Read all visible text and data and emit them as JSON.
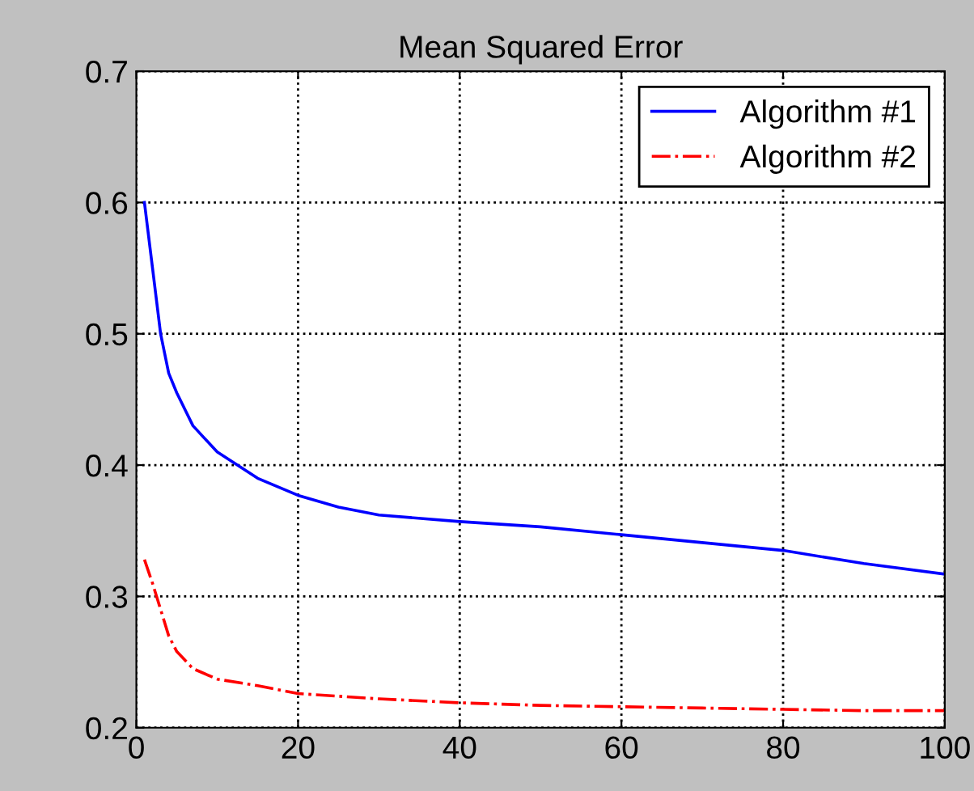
{
  "chart_data": {
    "type": "line",
    "title": "Mean Squared Error",
    "xlim": [
      0,
      100
    ],
    "ylim": [
      0.2,
      0.7
    ],
    "xticks": [
      0,
      20,
      40,
      60,
      80,
      100
    ],
    "yticks": [
      0.2,
      0.3,
      0.4,
      0.5,
      0.6,
      0.7
    ],
    "grid": true,
    "legend": "top right",
    "marker": "none",
    "x": [
      1,
      2,
      3,
      4,
      5,
      7,
      10,
      15,
      20,
      25,
      30,
      40,
      50,
      60,
      70,
      80,
      90,
      100
    ],
    "series": [
      {
        "name": "Algorithm #1",
        "color": "#0000ff",
        "line_style": "solid",
        "values": [
          0.6,
          0.55,
          0.5,
          0.47,
          0.455,
          0.43,
          0.41,
          0.39,
          0.377,
          0.368,
          0.362,
          0.357,
          0.353,
          0.347,
          0.341,
          0.335,
          0.325,
          0.317
        ]
      },
      {
        "name": "Algorithm #2",
        "color": "#ff0000",
        "line_style": "dashdot",
        "values": [
          0.328,
          0.31,
          0.29,
          0.27,
          0.258,
          0.245,
          0.237,
          0.232,
          0.226,
          0.224,
          0.222,
          0.219,
          0.217,
          0.216,
          0.215,
          0.214,
          0.213,
          0.213
        ]
      }
    ]
  }
}
